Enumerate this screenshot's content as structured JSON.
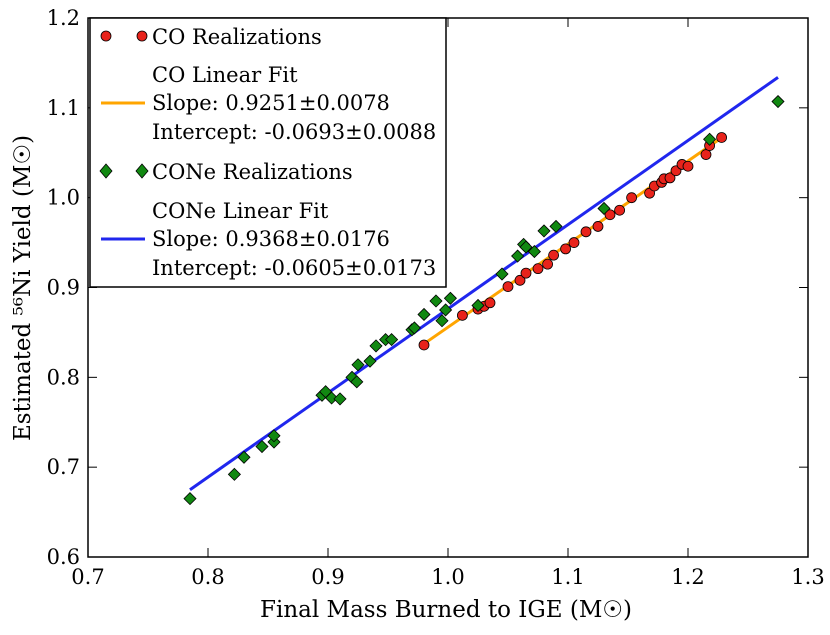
{
  "chart_data": {
    "type": "scatter",
    "title": "",
    "xlabel": "Final Mass Burned to IGE (M☉)",
    "ylabel": "Estimated ⁵⁶Ni Yield (M☉)",
    "xlim": [
      0.7,
      1.3
    ],
    "ylim": [
      0.6,
      1.2
    ],
    "xticks": [
      "0.7",
      "0.8",
      "0.9",
      "1.0",
      "1.1",
      "1.2",
      "1.3"
    ],
    "yticks": [
      "0.6",
      "0.7",
      "0.8",
      "0.9",
      "1.0",
      "1.1",
      "1.2"
    ],
    "grid": false,
    "legend_position": "top-left",
    "colors": {
      "co_points": "#e8231b",
      "co_fit": "#ffa500",
      "cone_points": "#118811",
      "cone_fit": "#2027ee"
    },
    "legend": [
      {
        "label": "CO Realizations"
      },
      {
        "label": "CO Linear Fit",
        "lines": [
          "Slope: 0.9251±0.0078",
          "Intercept: -0.0693±0.0088"
        ]
      },
      {
        "label": "CONe Realizations"
      },
      {
        "label": "CONe Linear Fit",
        "lines": [
          "Slope: 0.9368±0.0176",
          "Intercept: -0.0605±0.0173"
        ]
      }
    ],
    "series": [
      {
        "name": "CO Realizations",
        "marker": "circle",
        "x": [
          0.98,
          1.012,
          1.025,
          1.03,
          1.035,
          1.05,
          1.06,
          1.065,
          1.075,
          1.083,
          1.088,
          1.098,
          1.105,
          1.115,
          1.125,
          1.135,
          1.143,
          1.153,
          1.168,
          1.172,
          1.178,
          1.18,
          1.185,
          1.19,
          1.195,
          1.2,
          1.215,
          1.218,
          1.228
        ],
        "y": [
          0.836,
          0.869,
          0.876,
          0.879,
          0.883,
          0.901,
          0.908,
          0.916,
          0.921,
          0.926,
          0.936,
          0.943,
          0.95,
          0.962,
          0.968,
          0.981,
          0.986,
          1.0,
          1.005,
          1.013,
          1.017,
          1.021,
          1.022,
          1.03,
          1.037,
          1.035,
          1.048,
          1.058,
          1.067
        ]
      },
      {
        "name": "CONe Realizations",
        "marker": "diamond",
        "x": [
          0.785,
          0.822,
          0.83,
          0.845,
          0.855,
          0.855,
          0.895,
          0.898,
          0.903,
          0.91,
          0.92,
          0.924,
          0.925,
          0.935,
          0.94,
          0.948,
          0.953,
          0.97,
          0.972,
          0.98,
          0.99,
          0.995,
          0.998,
          1.002,
          1.025,
          1.045,
          1.058,
          1.063,
          1.065,
          1.072,
          1.08,
          1.09,
          1.13,
          1.218,
          1.275
        ],
        "y": [
          0.665,
          0.692,
          0.711,
          0.723,
          0.728,
          0.735,
          0.78,
          0.784,
          0.777,
          0.776,
          0.8,
          0.795,
          0.814,
          0.818,
          0.835,
          0.842,
          0.842,
          0.853,
          0.855,
          0.87,
          0.885,
          0.863,
          0.875,
          0.888,
          0.88,
          0.915,
          0.935,
          0.948,
          0.945,
          0.94,
          0.963,
          0.968,
          0.988,
          1.065,
          1.107
        ]
      }
    ],
    "fits": [
      {
        "name": "CO Linear Fit",
        "slope": 0.9251,
        "intercept": -0.0693,
        "x_range": [
          0.98,
          1.228
        ]
      },
      {
        "name": "CONe Linear Fit",
        "slope": 0.9368,
        "intercept": -0.0605,
        "x_range": [
          0.785,
          1.275
        ]
      }
    ]
  }
}
